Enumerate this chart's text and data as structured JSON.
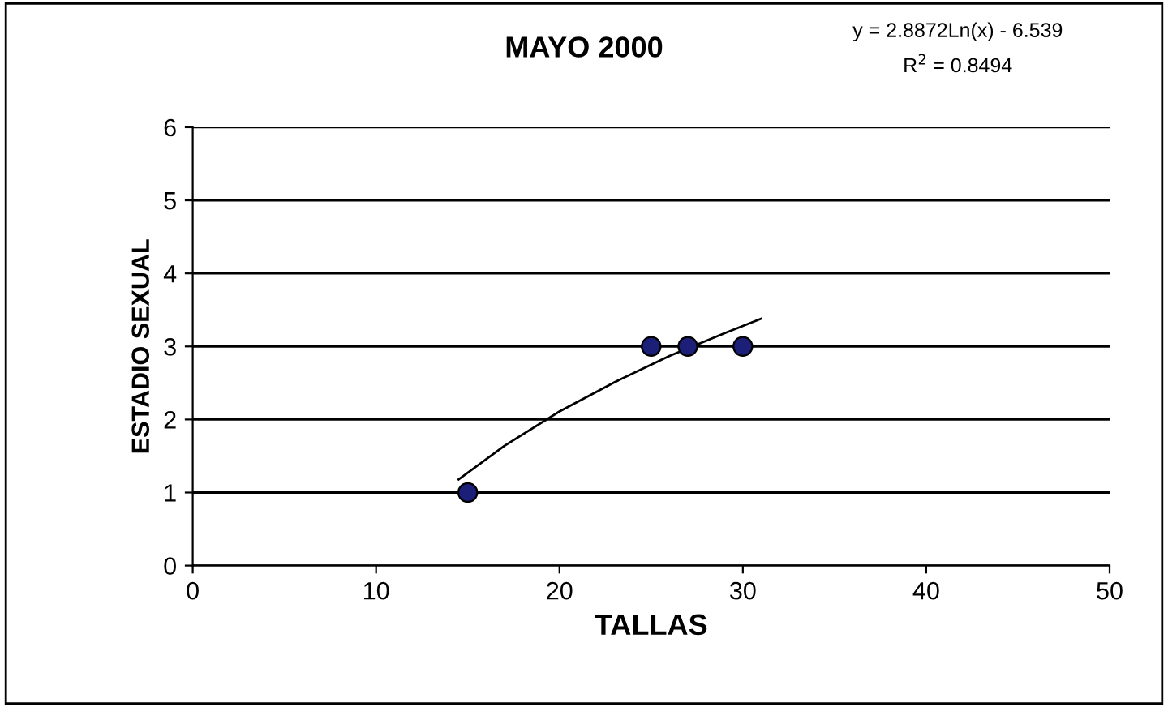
{
  "chart_data": {
    "type": "scatter",
    "title": "MAYO 2000",
    "xlabel": "TALLAS",
    "ylabel": "ESTADIO SEXUAL",
    "annotations": [
      "y = 2.8872Ln(x) - 6.539",
      "R$^{2}$ = 0.8494"
    ],
    "series": [
      {
        "color": "#1c1f78",
        "marker": "circle",
        "x": [
          15,
          25,
          27,
          30
        ],
        "values": [
          1,
          3,
          3,
          3
        ]
      },
      {
        "type": "line",
        "color": "#000000",
        "marker": "none",
        "line_style": "solid",
        "x": [
          14.5,
          17,
          20,
          23,
          26,
          29,
          31
        ],
        "values": [
          1.18,
          1.64,
          2.11,
          2.51,
          2.87,
          3.18,
          3.38
        ]
      }
    ],
    "xlim": [
      0,
      50
    ],
    "xticks": [
      0,
      10,
      20,
      30,
      40,
      50
    ],
    "ylim": [
      0,
      6
    ],
    "yticks": [
      0,
      1,
      2,
      3,
      4,
      5,
      6
    ],
    "grid": "y",
    "legend": false
  }
}
